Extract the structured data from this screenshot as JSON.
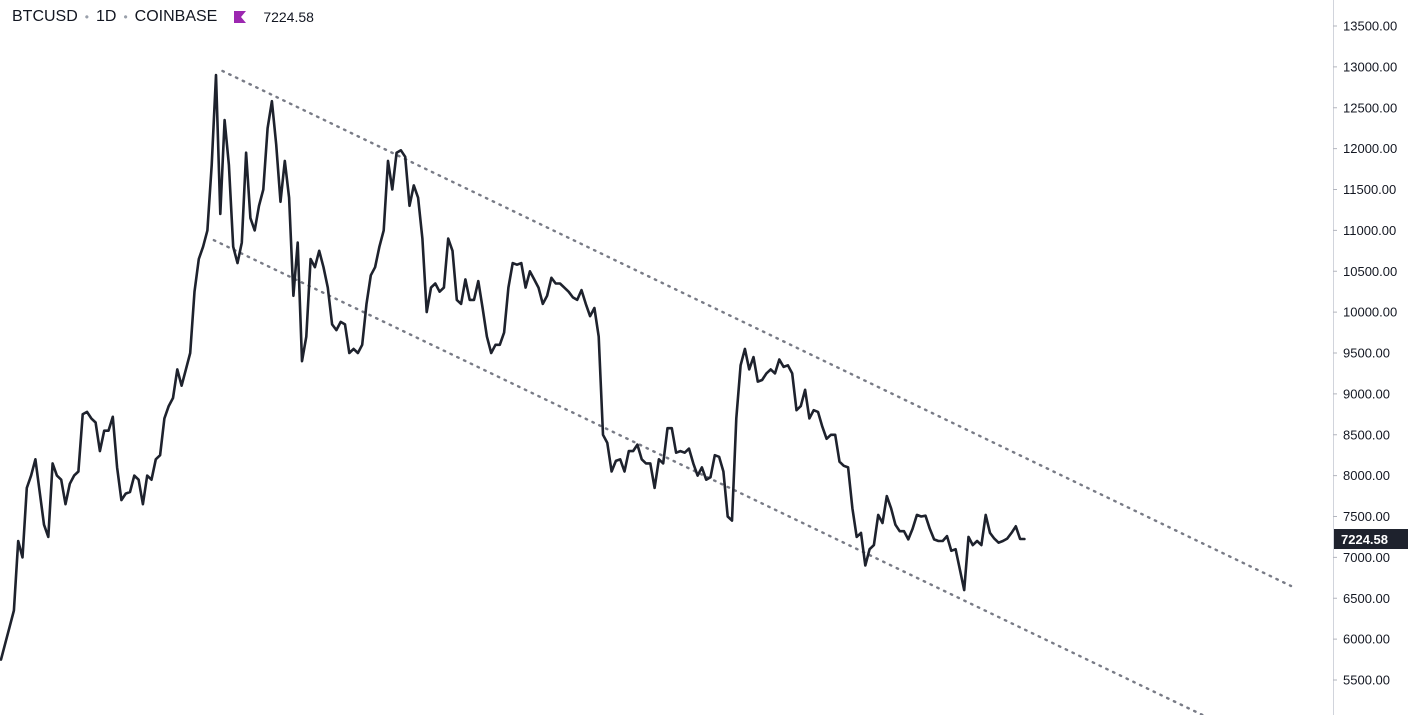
{
  "header": {
    "symbol": "BTCUSD",
    "interval": "1D",
    "exchange": "COINBASE",
    "last_price": "7224.58",
    "flag_color": "#9c27b0"
  },
  "colors": {
    "line": "#1e222d",
    "trendline": "#787b86",
    "axis_border": "#d1d4dc",
    "last_label_bg": "#1e222d"
  },
  "chart_data": {
    "type": "line",
    "ylim": [
      5200,
      13750
    ],
    "y_ticks": [
      5500,
      6000,
      6500,
      7000,
      7500,
      8000,
      8500,
      9000,
      9500,
      10000,
      10500,
      11000,
      11500,
      12000,
      12500,
      13000,
      13500
    ],
    "y_tick_labels": [
      "5500.00",
      "6000.00",
      "6500.00",
      "7000.00",
      "7500.00",
      "8000.00",
      "8500.00",
      "9000.00",
      "9500.00",
      "10000.00",
      "10500.00",
      "11000.00",
      "11500.00",
      "12000.00",
      "12500.00",
      "13000.00",
      "13500.00"
    ],
    "last_value": 7224.58,
    "last_value_label": "7224.58",
    "values": [
      5750,
      5950,
      6150,
      6350,
      7200,
      7000,
      7850,
      8000,
      8200,
      7800,
      7400,
      7250,
      8150,
      8000,
      7950,
      7650,
      7900,
      8000,
      8050,
      8750,
      8780,
      8700,
      8650,
      8300,
      8550,
      8550,
      8720,
      8100,
      7700,
      7780,
      7800,
      8000,
      7950,
      7650,
      8000,
      7950,
      8200,
      8250,
      8700,
      8850,
      8950,
      9300,
      9100,
      9300,
      9500,
      10250,
      10650,
      10800,
      11000,
      11800,
      12900,
      11200,
      12350,
      11800,
      10800,
      10600,
      10850,
      11950,
      11150,
      11000,
      11300,
      11500,
      12250,
      12580,
      12050,
      11350,
      11850,
      11400,
      10200,
      10850,
      9400,
      9700,
      10650,
      10550,
      10750,
      10550,
      10300,
      9850,
      9780,
      9880,
      9850,
      9500,
      9550,
      9500,
      9600,
      10100,
      10450,
      10550,
      10800,
      11000,
      11850,
      11500,
      11950,
      11980,
      11900,
      11300,
      11550,
      11400,
      10900,
      10000,
      10300,
      10350,
      10250,
      10300,
      10900,
      10750,
      10150,
      10100,
      10400,
      10150,
      10150,
      10380,
      10050,
      9700,
      9500,
      9600,
      9600,
      9750,
      10300,
      10600,
      10580,
      10600,
      10300,
      10500,
      10400,
      10300,
      10100,
      10200,
      10420,
      10350,
      10350,
      10300,
      10250,
      10180,
      10150,
      10270,
      10100,
      9950,
      10050,
      9700,
      8500,
      8400,
      8050,
      8180,
      8200,
      8050,
      8300,
      8300,
      8380,
      8200,
      8150,
      8150,
      7850,
      8200,
      8150,
      8580,
      8580,
      8280,
      8300,
      8280,
      8330,
      8150,
      8000,
      8100,
      7950,
      7980,
      8250,
      8230,
      8050,
      7500,
      7450,
      8700,
      9350,
      9550,
      9300,
      9450,
      9150,
      9170,
      9250,
      9300,
      9250,
      9420,
      9330,
      9350,
      9250,
      8800,
      8850,
      9050,
      8700,
      8800,
      8780,
      8600,
      8450,
      8500,
      8500,
      8170,
      8120,
      8100,
      7600,
      7250,
      7300,
      6900,
      7100,
      7150,
      7520,
      7420,
      7750,
      7600,
      7400,
      7320,
      7320,
      7220,
      7350,
      7520,
      7500,
      7510,
      7350,
      7220,
      7200,
      7200,
      7260,
      7080,
      7100,
      6850,
      6600,
      7250,
      7150,
      7200,
      7150,
      7520,
      7300,
      7230,
      7180,
      7200,
      7230,
      7300,
      7380,
      7224.58,
      7224.58
    ],
    "trendlines": [
      {
        "from": {
          "index": 51.5,
          "value": 12950
        },
        "to": {
          "index": 300,
          "value": 6650
        }
      },
      {
        "from": {
          "index": 49.5,
          "value": 10880
        },
        "to": {
          "index": 279.5,
          "value": 5070
        }
      }
    ]
  }
}
